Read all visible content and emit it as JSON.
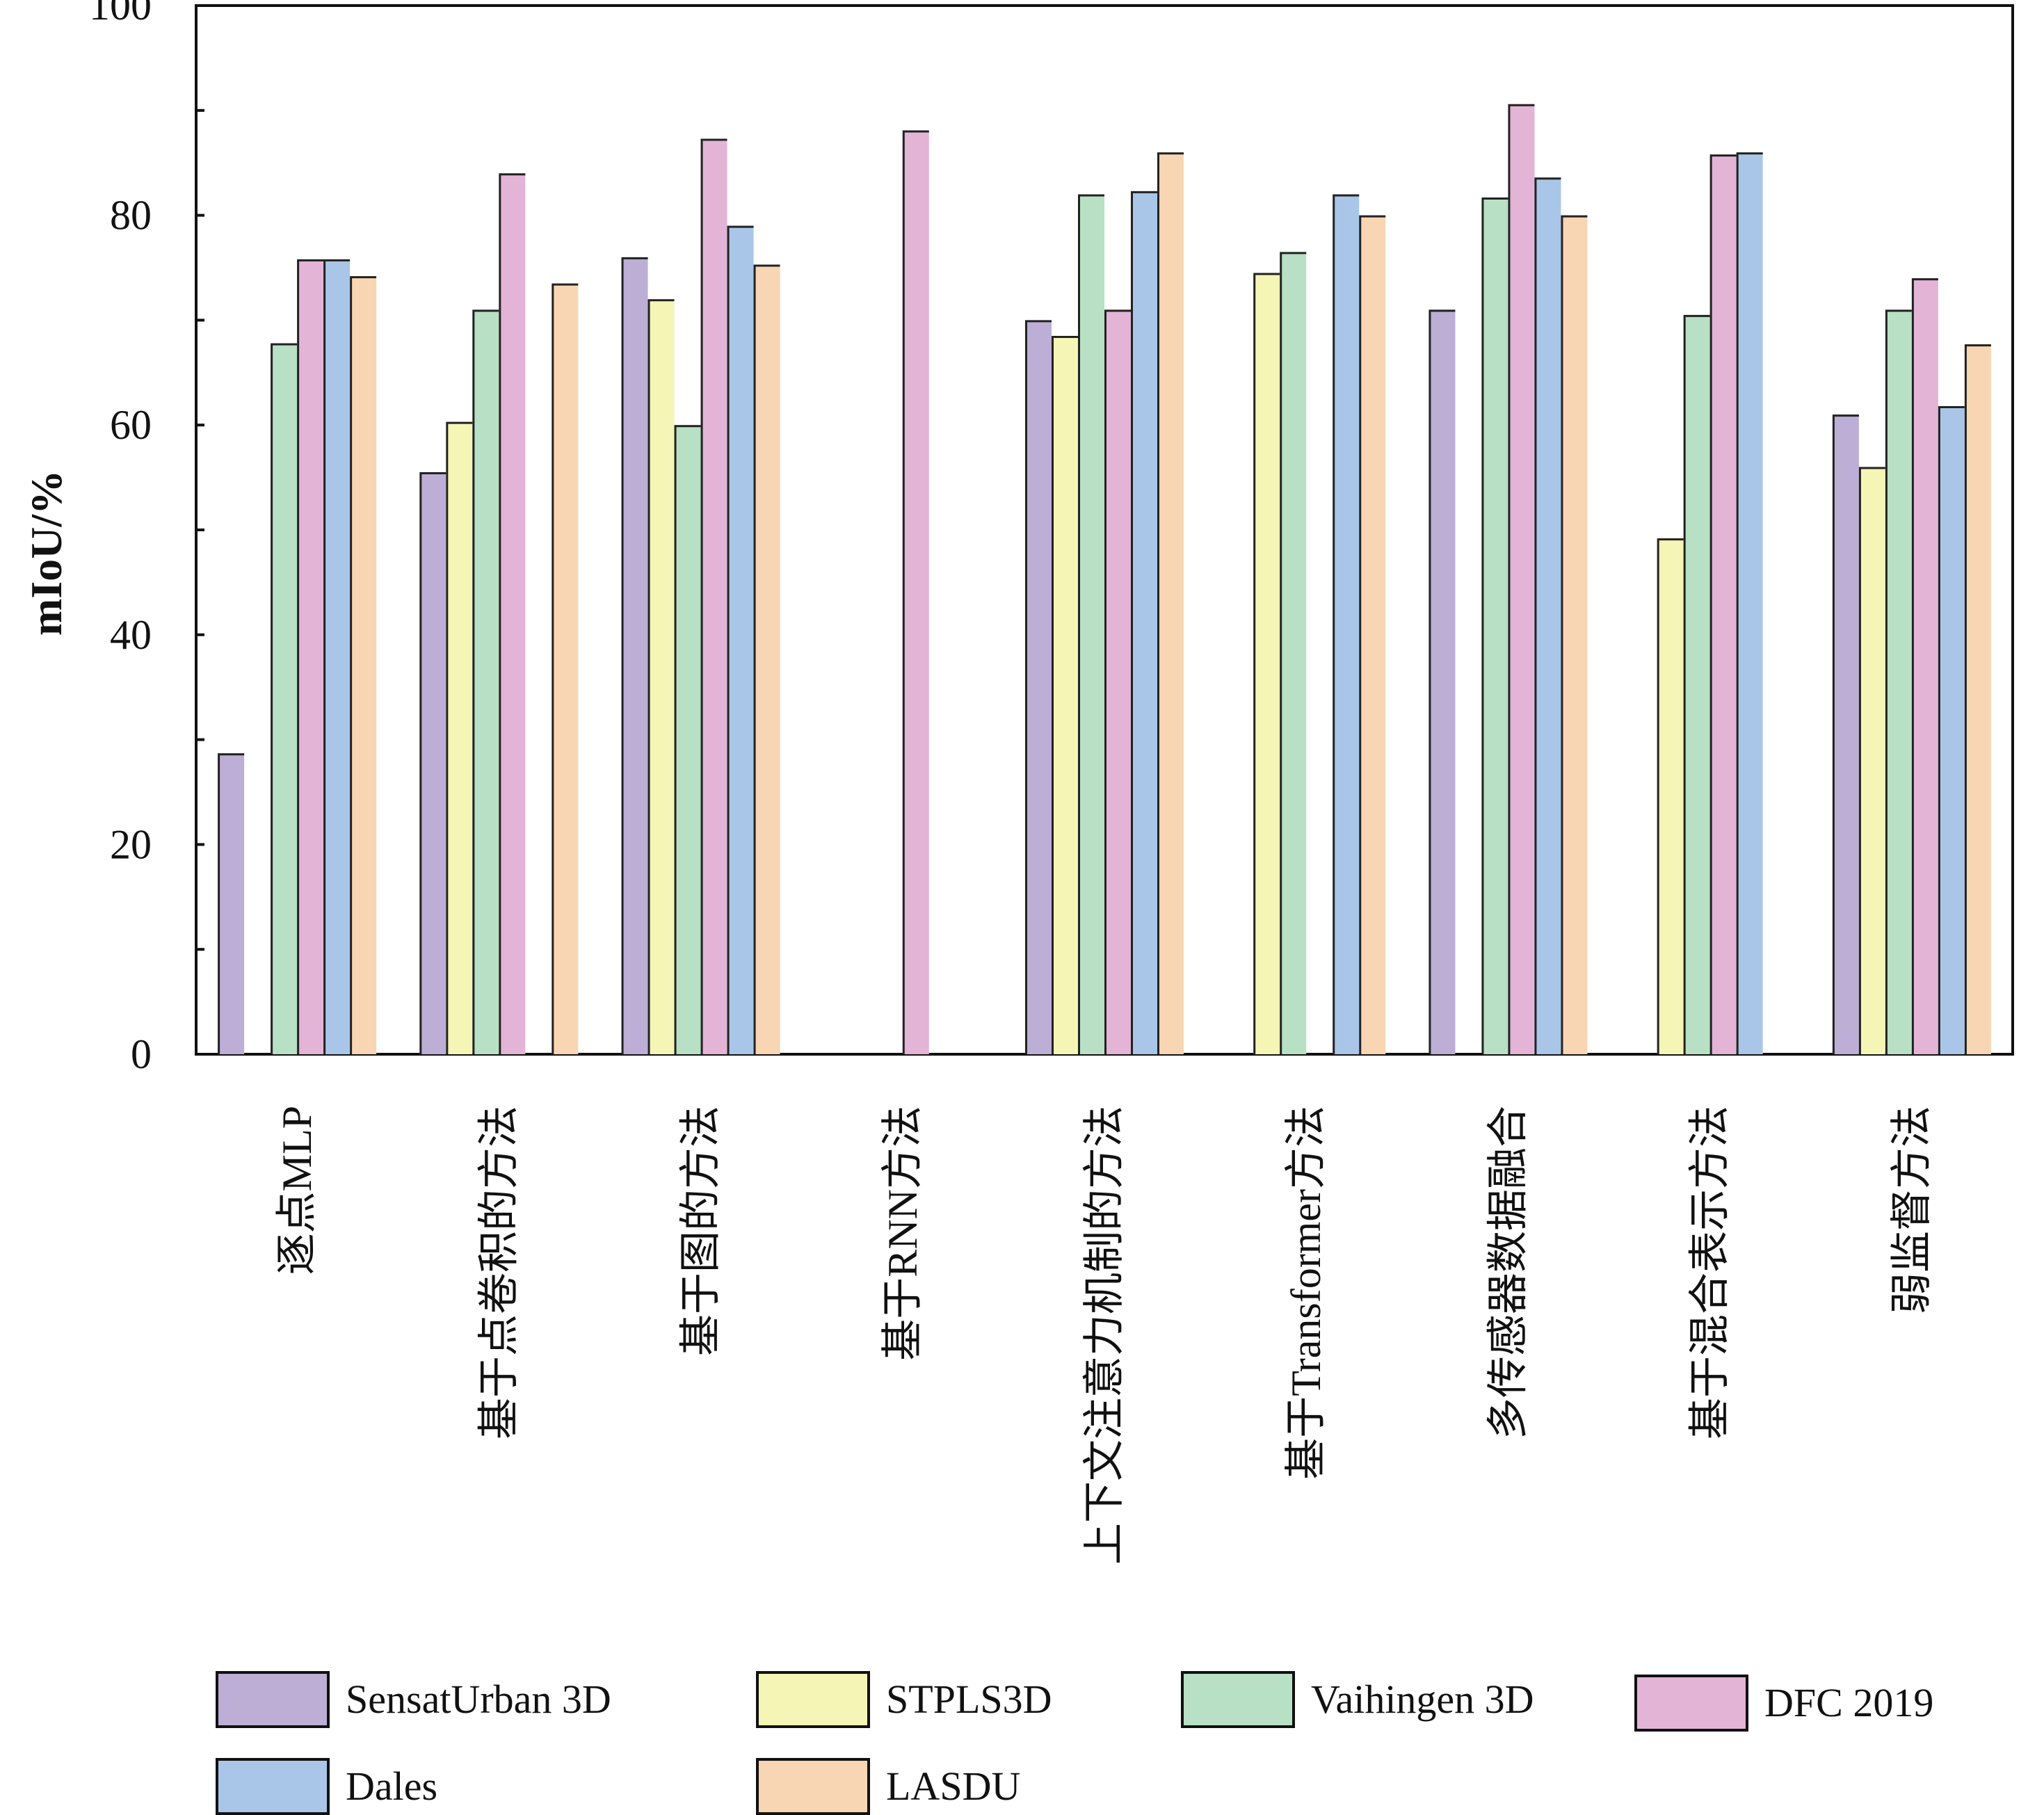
{
  "chart_data": {
    "type": "bar",
    "title": "",
    "xlabel": "",
    "ylabel": "mIoU/%",
    "ylim": [
      0,
      100
    ],
    "yticks": [
      0,
      20,
      40,
      60,
      80,
      100
    ],
    "grid": false,
    "legend_position": "bottom",
    "categories": [
      "逐点MLP",
      "基于点卷积的方法",
      "基于图的方法",
      "基于RNN方法",
      "上下文注意力机制的方法",
      "基于Transformer方法",
      "多传感器数据融合",
      "基于混合表示方法",
      "弱监督方法"
    ],
    "series": [
      {
        "name": "SensatUrban 3D",
        "color": "#bcaed4",
        "values": [
          28.7,
          55.5,
          76.0,
          null,
          70.0,
          null,
          71.0,
          null,
          61.0
        ]
      },
      {
        "name": "STPLS3D",
        "color": "#f5f5b5",
        "values": [
          null,
          60.3,
          72.0,
          null,
          68.5,
          74.5,
          null,
          49.2,
          56.0
        ]
      },
      {
        "name": "Vaihingen 3D",
        "color": "#b8e0c4",
        "values": [
          67.8,
          71.0,
          60.0,
          null,
          82.0,
          76.5,
          81.7,
          70.5,
          71.0
        ]
      },
      {
        "name": "DFC 2019",
        "color": "#e3b4d6",
        "values": [
          75.8,
          84.0,
          87.3,
          88.1,
          71.0,
          null,
          90.6,
          85.8,
          74.0
        ]
      },
      {
        "name": "Dales",
        "color": "#a9c6e8",
        "values": [
          75.8,
          null,
          79.0,
          null,
          82.3,
          82.0,
          83.6,
          86.0,
          61.8
        ]
      },
      {
        "name": "LASDU",
        "color": "#f8d5b3",
        "values": [
          74.2,
          73.5,
          75.3,
          null,
          86.0,
          80.0,
          80.0,
          null,
          67.7
        ]
      }
    ]
  }
}
